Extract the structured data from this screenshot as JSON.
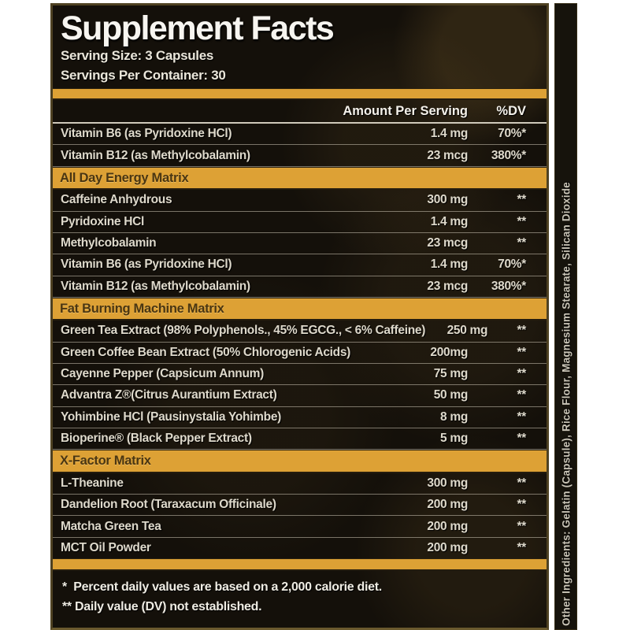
{
  "label": {
    "title": "Supplement Facts",
    "serving_size": "Serving Size: 3 Capsules",
    "servings_per_container": "Servings Per Container: 30",
    "columns": {
      "amount": "Amount Per Serving",
      "dv": "%DV"
    },
    "rows": [
      {
        "type": "item",
        "name": "Vitamin B6 (as Pyridoxine HCl)",
        "amount": "1.4 mg",
        "dv": "70%*"
      },
      {
        "type": "item",
        "name": "Vitamin B12 (as Methylcobalamin)",
        "amount": "23 mcg",
        "dv": "380%*"
      },
      {
        "type": "section",
        "name": "All Day Energy Matrix"
      },
      {
        "type": "item",
        "name": "Caffeine Anhydrous",
        "amount": "300 mg",
        "dv": "**"
      },
      {
        "type": "item",
        "name": "Pyridoxine HCl",
        "amount": "1.4 mg",
        "dv": "**"
      },
      {
        "type": "item",
        "name": "Methylcobalamin",
        "amount": "23 mcg",
        "dv": "**"
      },
      {
        "type": "item",
        "name": "Vitamin B6 (as Pyridoxine HCl)",
        "amount": "1.4 mg",
        "dv": "70%*"
      },
      {
        "type": "item",
        "name": "Vitamin B12 (as Methylcobalamin)",
        "amount": "23 mcg",
        "dv": "380%*"
      },
      {
        "type": "section",
        "name": "Fat Burning Machine Matrix"
      },
      {
        "type": "item",
        "name": "Green Tea Extract (98% Polyphenols., 45% EGCG., < 6% Caffeine)",
        "amount": "250 mg",
        "dv": "**"
      },
      {
        "type": "item",
        "name": "Green Coffee Bean Extract (50% Chlorogenic Acids)",
        "amount": "200mg",
        "dv": "**"
      },
      {
        "type": "item",
        "name": "Cayenne Pepper (Capsicum Annum)",
        "amount": "75 mg",
        "dv": "**"
      },
      {
        "type": "item",
        "name": "Advantra Z®(Citrus Aurantium Extract)",
        "amount": "50 mg",
        "dv": "**"
      },
      {
        "type": "item",
        "name": "Yohimbine HCl (Pausinystalia Yohimbe)",
        "amount": "8 mg",
        "dv": "**"
      },
      {
        "type": "item",
        "name": "Bioperine® (Black Pepper Extract)",
        "amount": "5 mg",
        "dv": "**"
      },
      {
        "type": "section",
        "name": "X-Factor Matrix"
      },
      {
        "type": "item",
        "name": "L-Theanine",
        "amount": "300 mg",
        "dv": "**"
      },
      {
        "type": "item",
        "name": "Dandelion Root (Taraxacum Officinale)",
        "amount": "200 mg",
        "dv": "**"
      },
      {
        "type": "item",
        "name": "Matcha Green Tea",
        "amount": "200 mg",
        "dv": "**"
      },
      {
        "type": "item",
        "name": "MCT Oil Powder",
        "amount": "200 mg",
        "dv": "**"
      }
    ],
    "footnotes": [
      "*  Percent daily values are based on a 2,000 calorie diet.",
      "** Daily value (DV) not established."
    ],
    "other_ingredients": "Other Ingredients: Gelatin (Capsule), Rice Flour, Magnesium Stearate, Silican Dioxide",
    "colors": {
      "gold": "#dda135",
      "label_bg": "#14100a",
      "border": "#4e4122"
    }
  }
}
